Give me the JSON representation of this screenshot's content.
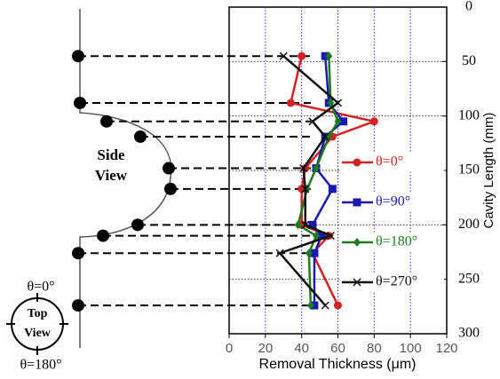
{
  "chart_data": {
    "type": "line",
    "x_label": "Removal Thickness (μm)",
    "y_label": "Cavity Length (mm)",
    "y": [
      45,
      88,
      105,
      119,
      148,
      167,
      200,
      210,
      226,
      274
    ],
    "series": [
      {
        "name": "θ=0°",
        "color": "#d42222",
        "marker": "circle",
        "values": [
          40,
          34,
          80,
          57,
          42,
          40,
          40,
          55,
          46,
          60
        ]
      },
      {
        "name": "θ=90°",
        "color": "#1a1ab0",
        "marker": "square",
        "values": [
          53,
          55,
          63,
          53,
          48,
          57,
          46,
          51,
          47,
          47
        ]
      },
      {
        "name": "θ=180°",
        "color": "#1e7a1e",
        "marker": "diamond",
        "values": [
          55,
          56,
          60,
          55,
          48,
          43,
          38,
          48,
          44,
          45
        ]
      },
      {
        "name": "θ=270°",
        "color": "#111111",
        "marker": "x",
        "values": [
          30,
          60,
          46,
          53,
          41,
          42,
          42,
          56,
          28,
          53
        ]
      }
    ],
    "xlim": [
      0,
      120
    ],
    "xticks": [
      0,
      20,
      40,
      60,
      80,
      100,
      120
    ],
    "ylim": [
      0,
      300
    ],
    "yticks": [
      0,
      50,
      100,
      150,
      200,
      250,
      300
    ],
    "grid": true
  },
  "diagram": {
    "side_view": [
      "Side",
      "View"
    ],
    "top_view": [
      "Top",
      "View"
    ],
    "top_angle": "θ=0°",
    "bottom_angle": "θ=180°"
  }
}
